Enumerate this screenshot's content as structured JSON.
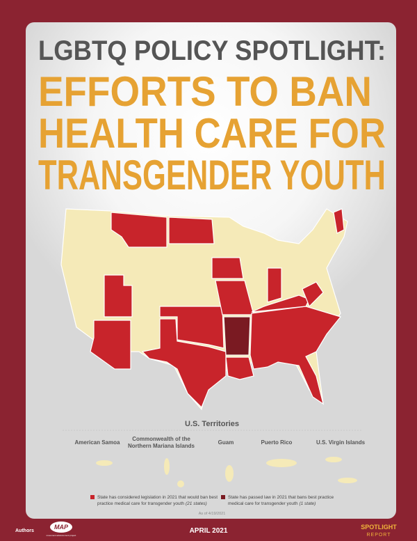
{
  "header": {
    "kicker": "LGBTQ POLICY SPOTLIGHT:",
    "title_lines": [
      "EFFORTS TO BAN",
      "HEALTH CARE FOR",
      "TRANSGENDER YOUTH"
    ]
  },
  "territories": {
    "title": "U.S. Territories",
    "labels": [
      {
        "lines": [
          "American Samoa"
        ]
      },
      {
        "lines": [
          "Commonwealth of the",
          "Northern Mariana Islands"
        ]
      },
      {
        "lines": [
          "Guam"
        ]
      },
      {
        "lines": [
          "Puerto Rico"
        ]
      },
      {
        "lines": [
          "U.S. Virgin Islands"
        ]
      }
    ]
  },
  "legend": [
    {
      "color": "#c8242b",
      "line1": "State has considered legislation in 2021 that would ban best",
      "line2": "practice medical care for transgender youth",
      "count": "(21 states)"
    },
    {
      "color": "#7a1a22",
      "line1": "State has passed law in 2021 that bans best practice",
      "line2": "medical care for transgender youth",
      "count": "(1 state)"
    }
  ],
  "as_of": "As of 4/19/2021",
  "footer": {
    "authors": "Authors",
    "logo": "MAP",
    "logo_sub": "movement advancement project",
    "date": "APRIL 2021",
    "brand1": "SPOTLIGHT",
    "brand2": "REPORT"
  }
}
